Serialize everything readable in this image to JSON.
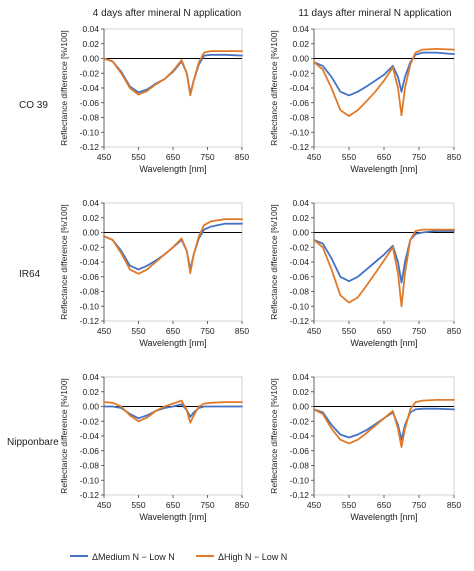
{
  "columns": [
    "4 days after mineral N application",
    "11 days after mineral N application"
  ],
  "rows": [
    "CO 39",
    "IR64",
    "Nipponbare"
  ],
  "legend": [
    {
      "label": "ΔMedium N − Low N",
      "color": "#4472c4"
    },
    {
      "label": "ΔHigh N − Low N",
      "color": "#e07a2a"
    }
  ],
  "chart_data": [
    {
      "type": "line",
      "panel": "CO 39 / 4 days",
      "xlabel": "Wavelength [nm]",
      "ylabel": "Reflectance difference [%/100]",
      "xlim": [
        450,
        850
      ],
      "ylim": [
        -0.12,
        0.04
      ],
      "xticks": [
        "450",
        "550",
        "650",
        "750",
        "850"
      ],
      "yticks": [
        "0.04",
        "0.02",
        "0.00",
        "-0.02",
        "-0.04",
        "-0.06",
        "-0.08",
        "-0.10",
        "-0.12"
      ],
      "series": [
        {
          "name": "ΔMedium N − Low N",
          "color": "#4472c4",
          "x": [
            450,
            475,
            500,
            525,
            550,
            575,
            600,
            625,
            650,
            675,
            690,
            700,
            710,
            725,
            740,
            760,
            800,
            850
          ],
          "y": [
            0.0,
            -0.004,
            -0.018,
            -0.038,
            -0.046,
            -0.042,
            -0.034,
            -0.028,
            -0.018,
            -0.004,
            -0.02,
            -0.048,
            -0.03,
            -0.008,
            0.004,
            0.005,
            0.005,
            0.004
          ]
        },
        {
          "name": "ΔHigh N − Low N",
          "color": "#e07a2a",
          "x": [
            450,
            475,
            500,
            525,
            550,
            575,
            600,
            625,
            650,
            675,
            690,
            700,
            710,
            725,
            740,
            760,
            800,
            850
          ],
          "y": [
            0.0,
            -0.004,
            -0.02,
            -0.04,
            -0.049,
            -0.044,
            -0.035,
            -0.028,
            -0.017,
            -0.002,
            -0.02,
            -0.05,
            -0.03,
            -0.005,
            0.008,
            0.01,
            0.01,
            0.01
          ]
        }
      ]
    },
    {
      "type": "line",
      "panel": "CO 39 / 11 days",
      "xlabel": "Wavelength [nm]",
      "ylabel": "Reflectance difference [%/100]",
      "xlim": [
        450,
        850
      ],
      "ylim": [
        -0.12,
        0.04
      ],
      "xticks": [
        "450",
        "550",
        "650",
        "750",
        "850"
      ],
      "yticks": [
        "0.04",
        "0.02",
        "0.00",
        "-0.02",
        "-0.04",
        "-0.06",
        "-0.08",
        "-0.10",
        "-0.12"
      ],
      "series": [
        {
          "name": "ΔMedium N − Low N",
          "color": "#4472c4",
          "x": [
            450,
            475,
            500,
            525,
            550,
            575,
            600,
            625,
            650,
            675,
            690,
            700,
            710,
            725,
            740,
            760,
            800,
            850
          ],
          "y": [
            -0.005,
            -0.01,
            -0.025,
            -0.045,
            -0.05,
            -0.045,
            -0.038,
            -0.03,
            -0.022,
            -0.01,
            -0.025,
            -0.045,
            -0.025,
            -0.005,
            0.005,
            0.008,
            0.008,
            0.006
          ]
        },
        {
          "name": "ΔHigh N − Low N",
          "color": "#e07a2a",
          "x": [
            450,
            475,
            500,
            525,
            550,
            575,
            600,
            625,
            650,
            675,
            690,
            700,
            710,
            725,
            740,
            760,
            800,
            850
          ],
          "y": [
            -0.005,
            -0.015,
            -0.04,
            -0.07,
            -0.078,
            -0.07,
            -0.058,
            -0.045,
            -0.03,
            -0.012,
            -0.04,
            -0.077,
            -0.04,
            -0.008,
            0.008,
            0.012,
            0.013,
            0.012
          ]
        }
      ]
    },
    {
      "type": "line",
      "panel": "IR64 / 4 days",
      "xlabel": "Wavelength [nm]",
      "ylabel": "Reflectance difference [%/100]",
      "xlim": [
        450,
        850
      ],
      "ylim": [
        -0.12,
        0.04
      ],
      "xticks": [
        "450",
        "550",
        "650",
        "750",
        "850"
      ],
      "yticks": [
        "0.04",
        "0.02",
        "0.00",
        "-0.02",
        "-0.04",
        "-0.06",
        "-0.08",
        "-0.10",
        "-0.12"
      ],
      "series": [
        {
          "name": "ΔMedium N − Low N",
          "color": "#4472c4",
          "x": [
            450,
            475,
            500,
            525,
            550,
            575,
            600,
            625,
            650,
            675,
            690,
            700,
            710,
            725,
            740,
            760,
            800,
            850
          ],
          "y": [
            -0.005,
            -0.01,
            -0.025,
            -0.045,
            -0.05,
            -0.045,
            -0.038,
            -0.03,
            -0.02,
            -0.01,
            -0.025,
            -0.05,
            -0.03,
            -0.008,
            0.004,
            0.008,
            0.012,
            0.012
          ]
        },
        {
          "name": "ΔHigh N − Low N",
          "color": "#e07a2a",
          "x": [
            450,
            475,
            500,
            525,
            550,
            575,
            600,
            625,
            650,
            675,
            690,
            700,
            710,
            725,
            740,
            760,
            800,
            850
          ],
          "y": [
            -0.005,
            -0.01,
            -0.028,
            -0.05,
            -0.056,
            -0.05,
            -0.04,
            -0.03,
            -0.02,
            -0.008,
            -0.025,
            -0.055,
            -0.03,
            -0.005,
            0.01,
            0.015,
            0.018,
            0.018
          ]
        }
      ]
    },
    {
      "type": "line",
      "panel": "IR64 / 11 days",
      "xlabel": "Wavelength [nm]",
      "ylabel": "Reflectance difference [%/100]",
      "xlim": [
        450,
        850
      ],
      "ylim": [
        -0.12,
        0.04
      ],
      "xticks": [
        "450",
        "550",
        "650",
        "750",
        "850"
      ],
      "yticks": [
        "0.04",
        "0.02",
        "0.00",
        "-0.02",
        "-0.04",
        "-0.06",
        "-0.08",
        "-0.10",
        "-0.12"
      ],
      "series": [
        {
          "name": "ΔMedium N − Low N",
          "color": "#4472c4",
          "x": [
            450,
            475,
            500,
            525,
            550,
            575,
            600,
            625,
            650,
            675,
            690,
            700,
            710,
            725,
            740,
            760,
            800,
            850
          ],
          "y": [
            -0.01,
            -0.015,
            -0.035,
            -0.06,
            -0.066,
            -0.06,
            -0.05,
            -0.04,
            -0.03,
            -0.018,
            -0.04,
            -0.068,
            -0.04,
            -0.01,
            -0.002,
            0.0,
            0.002,
            0.002
          ]
        },
        {
          "name": "ΔHigh N − Low N",
          "color": "#e07a2a",
          "x": [
            450,
            475,
            500,
            525,
            550,
            575,
            600,
            625,
            650,
            675,
            690,
            700,
            710,
            725,
            740,
            760,
            800,
            850
          ],
          "y": [
            -0.01,
            -0.02,
            -0.05,
            -0.085,
            -0.095,
            -0.088,
            -0.072,
            -0.055,
            -0.038,
            -0.02,
            -0.055,
            -0.1,
            -0.055,
            -0.01,
            0.002,
            0.004,
            0.004,
            0.004
          ]
        }
      ]
    },
    {
      "type": "line",
      "panel": "Nipponbare / 4 days",
      "xlabel": "Wavelength [nm]",
      "ylabel": "Reflectance difference [%/100]",
      "xlim": [
        450,
        850
      ],
      "ylim": [
        -0.12,
        0.04
      ],
      "xticks": [
        "450",
        "550",
        "650",
        "750",
        "850"
      ],
      "yticks": [
        "0.04",
        "0.02",
        "0.00",
        "-0.02",
        "-0.04",
        "-0.06",
        "-0.08",
        "-0.10",
        "-0.12"
      ],
      "series": [
        {
          "name": "ΔMedium N − Low N",
          "color": "#4472c4",
          "x": [
            450,
            475,
            500,
            525,
            550,
            575,
            600,
            625,
            650,
            675,
            690,
            700,
            710,
            725,
            740,
            760,
            800,
            850
          ],
          "y": [
            0.0,
            0.0,
            -0.002,
            -0.01,
            -0.016,
            -0.012,
            -0.006,
            -0.002,
            0.0,
            0.003,
            -0.005,
            -0.014,
            -0.008,
            -0.002,
            0.0,
            0.0,
            0.0,
            0.0
          ]
        },
        {
          "name": "ΔHigh N − Low N",
          "color": "#e07a2a",
          "x": [
            450,
            475,
            500,
            525,
            550,
            575,
            600,
            625,
            650,
            675,
            690,
            700,
            710,
            725,
            740,
            760,
            800,
            850
          ],
          "y": [
            0.006,
            0.005,
            0.0,
            -0.012,
            -0.02,
            -0.015,
            -0.006,
            0.0,
            0.004,
            0.008,
            -0.005,
            -0.022,
            -0.012,
            0.0,
            0.004,
            0.005,
            0.006,
            0.006
          ]
        }
      ]
    },
    {
      "type": "line",
      "panel": "Nipponbare / 11 days",
      "xlabel": "Wavelength [nm]",
      "ylabel": "Reflectance difference [%/100]",
      "xlim": [
        450,
        850
      ],
      "ylim": [
        -0.12,
        0.04
      ],
      "xticks": [
        "450",
        "550",
        "650",
        "750",
        "850"
      ],
      "yticks": [
        "0.04",
        "0.02",
        "0.00",
        "-0.02",
        "-0.04",
        "-0.06",
        "-0.08",
        "-0.10",
        "-0.12"
      ],
      "series": [
        {
          "name": "ΔMedium N − Low N",
          "color": "#4472c4",
          "x": [
            450,
            475,
            500,
            525,
            550,
            575,
            600,
            625,
            650,
            675,
            690,
            700,
            710,
            725,
            740,
            760,
            800,
            850
          ],
          "y": [
            -0.004,
            -0.008,
            -0.025,
            -0.038,
            -0.042,
            -0.038,
            -0.032,
            -0.024,
            -0.016,
            -0.008,
            -0.025,
            -0.045,
            -0.025,
            -0.008,
            -0.004,
            -0.003,
            -0.003,
            -0.004
          ]
        },
        {
          "name": "ΔHigh N − Low N",
          "color": "#e07a2a",
          "x": [
            450,
            475,
            500,
            525,
            550,
            575,
            600,
            625,
            650,
            675,
            690,
            700,
            710,
            725,
            740,
            760,
            800,
            850
          ],
          "y": [
            -0.004,
            -0.01,
            -0.03,
            -0.045,
            -0.05,
            -0.045,
            -0.036,
            -0.026,
            -0.016,
            -0.006,
            -0.03,
            -0.055,
            -0.03,
            -0.004,
            0.006,
            0.008,
            0.009,
            0.009
          ]
        }
      ]
    }
  ]
}
